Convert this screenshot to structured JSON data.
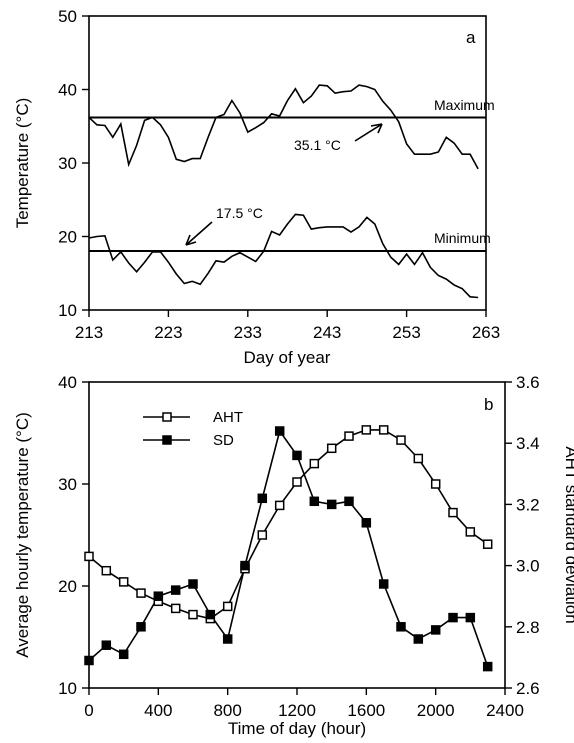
{
  "chart_data": [
    {
      "panel": "a",
      "type": "line",
      "xlabel": "Day of year",
      "ylabel": "Temperature (°C)",
      "xlim": [
        213,
        263
      ],
      "ylim": [
        10,
        50
      ],
      "xticks": [
        213,
        223,
        233,
        243,
        253,
        263
      ],
      "yticks": [
        10,
        20,
        30,
        40,
        50
      ],
      "series": [
        {
          "x": [
            213,
            214,
            215,
            216,
            217,
            218,
            219,
            220,
            221,
            222,
            223,
            224,
            225,
            226,
            227,
            228,
            229,
            230,
            231,
            232,
            233,
            234,
            235,
            236,
            237,
            238,
            239,
            240,
            241,
            242,
            243,
            244,
            245,
            246,
            247,
            248,
            249,
            250,
            251,
            252,
            253,
            254,
            255,
            256,
            257,
            258,
            259,
            260,
            261,
            262
          ],
          "values": [
            36.2,
            35.2,
            35.1,
            33.5,
            35.3,
            29.8,
            32.4,
            35.8,
            36.2,
            35.2,
            33.5,
            30.5,
            30.2,
            30.6,
            30.6,
            33.5,
            36.2,
            36.6,
            38.5,
            36.8,
            34.2,
            34.8,
            35.5,
            36.7,
            36.4,
            38.5,
            40.1,
            38.2,
            39.1,
            40.6,
            40.5,
            39.5,
            39.7,
            39.8,
            40.6,
            40.4,
            40.0,
            38.4,
            37.2,
            35.6,
            32.6,
            31.2,
            31.2,
            31.2,
            31.5,
            33.5,
            32.7,
            31.2,
            31.2,
            29.2
          ]
        },
        {
          "x": [
            213,
            214,
            215,
            216,
            217,
            218,
            219,
            220,
            221,
            222,
            223,
            224,
            225,
            226,
            227,
            228,
            229,
            230,
            231,
            232,
            233,
            234,
            235,
            236,
            237,
            238,
            239,
            240,
            241,
            242,
            243,
            244,
            245,
            246,
            247,
            248,
            249,
            250,
            251,
            252,
            253,
            254,
            255,
            256,
            257,
            258,
            259,
            260,
            261,
            262
          ],
          "values": [
            19.8,
            20.0,
            20.1,
            16.8,
            17.9,
            16.4,
            15.2,
            16.5,
            17.9,
            17.9,
            16.5,
            14.9,
            13.6,
            13.9,
            13.5,
            15.0,
            16.7,
            16.5,
            17.3,
            17.8,
            17.2,
            16.6,
            18.0,
            20.7,
            20.2,
            21.7,
            23.0,
            22.9,
            21.0,
            21.2,
            21.3,
            21.3,
            21.3,
            20.6,
            21.3,
            22.6,
            21.7,
            19.0,
            17.2,
            16.2,
            17.6,
            16.2,
            17.8,
            15.8,
            14.7,
            14.2,
            13.4,
            12.9,
            11.8,
            11.7
          ]
        }
      ],
      "reference_lines": [
        {
          "name": "Maximum",
          "y": 35.1,
          "annotation": "35.1 °C"
        },
        {
          "name": "Minimum",
          "y": 17.5,
          "annotation": "17.5 °C"
        }
      ],
      "grid": false
    },
    {
      "panel": "b",
      "type": "line",
      "xlabel": "Time of day (hour)",
      "ylabel": "Average hourly temperature (°C)",
      "y2label": "AHT standard deviation",
      "xlim": [
        0,
        2400
      ],
      "ylim": [
        10,
        40
      ],
      "y2lim": [
        2.6,
        3.6
      ],
      "xticks": [
        0,
        400,
        800,
        1200,
        1600,
        2000,
        2400
      ],
      "yticks": [
        10,
        20,
        30,
        40
      ],
      "y2ticks": [
        2.6,
        2.8,
        3.0,
        3.2,
        3.4,
        3.6
      ],
      "categories": [
        0,
        100,
        200,
        300,
        400,
        500,
        600,
        700,
        800,
        900,
        1000,
        1100,
        1200,
        1300,
        1400,
        1500,
        1600,
        1700,
        1800,
        1900,
        2000,
        2100,
        2200,
        2300
      ],
      "series": [
        {
          "name": "AHT",
          "marker": "open-square",
          "axis": "left",
          "values": [
            22.9,
            21.5,
            20.4,
            19.3,
            18.5,
            17.8,
            17.2,
            16.8,
            18.0,
            21.7,
            25.0,
            27.9,
            30.2,
            32.0,
            33.5,
            34.7,
            35.3,
            35.3,
            34.3,
            32.5,
            30.0,
            27.2,
            25.3,
            24.1
          ]
        },
        {
          "name": "SD",
          "marker": "filled-square",
          "axis": "right",
          "values": [
            2.69,
            2.74,
            2.71,
            2.8,
            2.9,
            2.92,
            2.94,
            2.84,
            2.76,
            3.0,
            3.22,
            3.44,
            3.36,
            3.21,
            3.2,
            3.21,
            3.14,
            2.94,
            2.8,
            2.76,
            2.79,
            2.83,
            2.83,
            2.67
          ]
        }
      ],
      "legend_position": "top-left",
      "grid": false
    }
  ],
  "panel_a": {
    "letter": "a",
    "xlabel": "Day of year",
    "ylabel": "Temperature (°C)",
    "max_label": "Maximum",
    "min_label": "Minimum",
    "max_annot": "35.1 °C",
    "min_annot": "17.5 °C"
  },
  "panel_b": {
    "letter": "b",
    "xlabel": "Time of day (hour)",
    "ylabel": "Average hourly temperature (°C)",
    "y2label": "AHT standard deviation",
    "legend_aht": "AHT",
    "legend_sd": "SD"
  }
}
